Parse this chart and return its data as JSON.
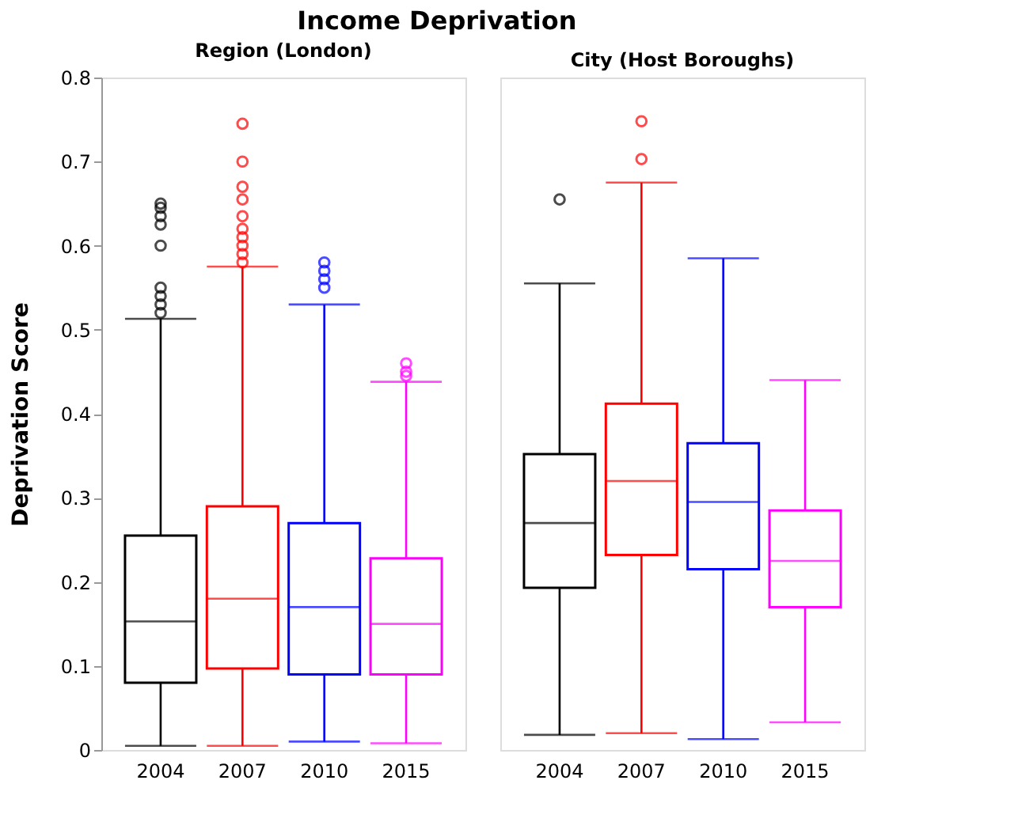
{
  "chart_data": [
    {
      "type": "box",
      "title": "Income Deprivation",
      "subtitle": "Region (London)",
      "ylabel": "Deprivation Score",
      "categories": [
        "2004",
        "2007",
        "2010",
        "2015"
      ],
      "colors": [
        "#000000",
        "#ff0000",
        "#0000ff",
        "#ff00ff"
      ],
      "ylim": [
        0,
        0.8
      ],
      "yticks": [
        0,
        0.1,
        0.2,
        0.3,
        0.4,
        0.5,
        0.6,
        0.7,
        0.8
      ],
      "grid": false,
      "boxes": [
        {
          "low": 0.005,
          "q1": 0.08,
          "median": 0.153,
          "q3": 0.255,
          "high": 0.513,
          "outliers": [
            0.52,
            0.53,
            0.54,
            0.55,
            0.6,
            0.625,
            0.635,
            0.645,
            0.65
          ]
        },
        {
          "low": 0.005,
          "q1": 0.097,
          "median": 0.18,
          "q3": 0.29,
          "high": 0.575,
          "outliers": [
            0.58,
            0.59,
            0.6,
            0.61,
            0.62,
            0.635,
            0.655,
            0.67,
            0.7,
            0.745
          ]
        },
        {
          "low": 0.01,
          "q1": 0.09,
          "median": 0.17,
          "q3": 0.27,
          "high": 0.53,
          "outliers": [
            0.55,
            0.56,
            0.57,
            0.58
          ]
        },
        {
          "low": 0.008,
          "q1": 0.09,
          "median": 0.15,
          "q3": 0.228,
          "high": 0.438,
          "outliers": [
            0.445,
            0.45,
            0.46
          ]
        }
      ]
    },
    {
      "type": "box",
      "subtitle": "City (Host Boroughs)",
      "categories": [
        "2004",
        "2007",
        "2010",
        "2015"
      ],
      "colors": [
        "#000000",
        "#ff0000",
        "#0000ff",
        "#ff00ff"
      ],
      "ylim": [
        0,
        0.8
      ],
      "yticks": [
        0,
        0.1,
        0.2,
        0.3,
        0.4,
        0.5,
        0.6,
        0.7,
        0.8
      ],
      "tick_labels": "x",
      "grid": false,
      "boxes": [
        {
          "low": 0.018,
          "q1": 0.193,
          "median": 0.27,
          "q3": 0.352,
          "high": 0.555,
          "outliers": [
            0.655
          ]
        },
        {
          "low": 0.02,
          "q1": 0.232,
          "median": 0.32,
          "q3": 0.412,
          "high": 0.675,
          "outliers": [
            0.703,
            0.748
          ]
        },
        {
          "low": 0.013,
          "q1": 0.215,
          "median": 0.295,
          "q3": 0.365,
          "high": 0.585
        },
        {
          "low": 0.033,
          "q1": 0.17,
          "median": 0.225,
          "q3": 0.285,
          "high": 0.44
        }
      ]
    }
  ]
}
